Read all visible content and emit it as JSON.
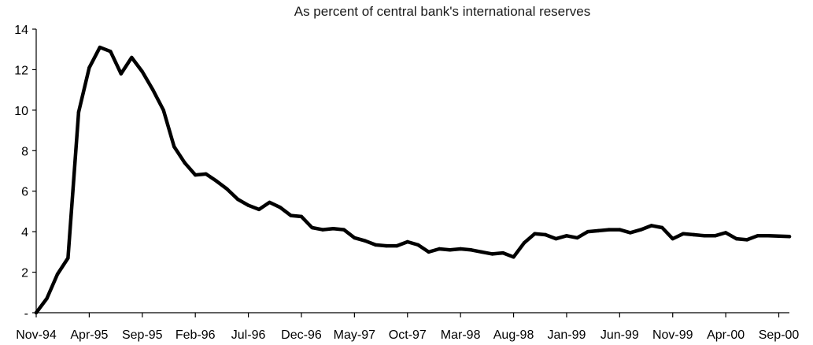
{
  "chart_data": {
    "type": "line",
    "title": "As percent of central bank's international reserves",
    "xlabel": "",
    "ylabel": "",
    "ylim": [
      0,
      14
    ],
    "y_ticks": [
      {
        "value": 0,
        "label": "-"
      },
      {
        "value": 2,
        "label": "2"
      },
      {
        "value": 4,
        "label": "4"
      },
      {
        "value": 6,
        "label": "6"
      },
      {
        "value": 8,
        "label": "8"
      },
      {
        "value": 10,
        "label": "10"
      },
      {
        "value": 12,
        "label": "12"
      },
      {
        "value": 14,
        "label": "14"
      }
    ],
    "x_tick_labels": [
      "Nov-94",
      "Apr-95",
      "Sep-95",
      "Feb-96",
      "Jul-96",
      "Dec-96",
      "May-97",
      "Oct-97",
      "Mar-98",
      "Aug-98",
      "Jan-99",
      "Jun-99",
      "Nov-99",
      "Apr-00",
      "Sep-00"
    ],
    "grid": false,
    "legend": "none",
    "series": [
      {
        "color": "#000000",
        "x": [
          "Nov-94",
          "Dec-94",
          "Jan-95",
          "Feb-95",
          "Mar-95",
          "Apr-95",
          "May-95",
          "Jun-95",
          "Jul-95",
          "Aug-95",
          "Sep-95",
          "Oct-95",
          "Nov-95",
          "Dec-95",
          "Jan-96",
          "Feb-96",
          "Mar-96",
          "Apr-96",
          "May-96",
          "Jun-96",
          "Jul-96",
          "Aug-96",
          "Sep-96",
          "Oct-96",
          "Nov-96",
          "Dec-96",
          "Jan-97",
          "Feb-97",
          "Mar-97",
          "Apr-97",
          "May-97",
          "Jun-97",
          "Jul-97",
          "Aug-97",
          "Sep-97",
          "Oct-97",
          "Nov-97",
          "Dec-97",
          "Jan-98",
          "Feb-98",
          "Mar-98",
          "Apr-98",
          "May-98",
          "Jun-98",
          "Jul-98",
          "Aug-98",
          "Sep-98",
          "Oct-98",
          "Nov-98",
          "Dec-98",
          "Jan-99",
          "Feb-99",
          "Mar-99",
          "Apr-99",
          "May-99",
          "Jun-99",
          "Jul-99",
          "Aug-99",
          "Sep-99",
          "Oct-99",
          "Nov-99",
          "Dec-99",
          "Jan-00",
          "Feb-00",
          "Mar-00",
          "Apr-00",
          "May-00",
          "Jun-00",
          "Jul-00",
          "Aug-00",
          "Sep-00",
          "Oct-00"
        ],
        "values": [
          0.0,
          0.7,
          1.9,
          2.7,
          9.9,
          12.1,
          13.1,
          12.9,
          11.8,
          12.6,
          11.9,
          11.0,
          10.0,
          8.2,
          7.4,
          6.8,
          6.85,
          6.5,
          6.1,
          5.6,
          5.3,
          5.1,
          5.45,
          5.2,
          4.8,
          4.75,
          4.2,
          4.1,
          4.15,
          4.1,
          3.7,
          3.55,
          3.35,
          3.3,
          3.3,
          3.5,
          3.35,
          3.0,
          3.15,
          3.1,
          3.15,
          3.1,
          3.0,
          2.9,
          2.95,
          2.75,
          3.45,
          3.9,
          3.85,
          3.65,
          3.8,
          3.7,
          4.0,
          4.05,
          4.1,
          4.1,
          3.95,
          4.1,
          4.3,
          4.2,
          3.65,
          3.9,
          3.85,
          3.8,
          3.8,
          3.95,
          3.65,
          3.6,
          3.8,
          3.8,
          3.78,
          3.76
        ]
      }
    ]
  }
}
